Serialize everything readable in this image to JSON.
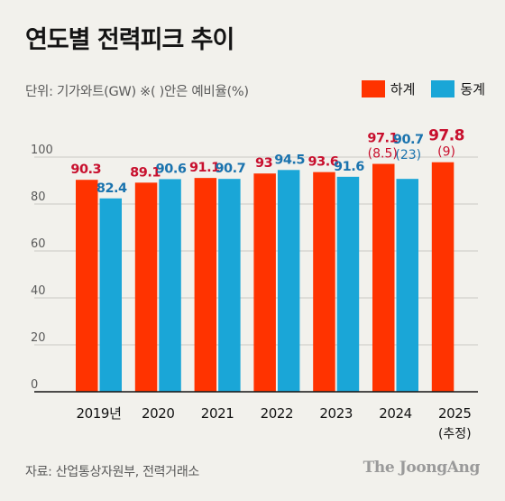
{
  "header": {
    "title": "연도별 전력피크 추이",
    "unit_note": "단위: 기가와트(GW)   ※(   )안은 예비율(%)"
  },
  "footer": {
    "source": "자료: 산업통상자원부, 전력거래소",
    "brand": "The JoongAng"
  },
  "colors": {
    "summer": "#ff3300",
    "winter": "#1aa6d7",
    "summer_label": "#c8102e",
    "winter_label": "#1a73ae",
    "grid": "#c9c9c4",
    "tick": "#5a5a5a"
  },
  "chart_data": {
    "type": "bar",
    "categories": [
      "2019년",
      "2020",
      "2021",
      "2022",
      "2023",
      "2024",
      "2025"
    ],
    "category_notes": [
      "",
      "",
      "",
      "",
      "",
      "",
      "(추정)"
    ],
    "series": [
      {
        "name": "하계",
        "values": [
          90.3,
          89.1,
          91.1,
          93,
          93.6,
          97.1,
          97.8
        ],
        "labels": [
          "90.3",
          "89.1",
          "91.1",
          "93",
          "93.6",
          "97.1",
          "97.8"
        ],
        "reserve_labels": [
          "",
          "",
          "",
          "",
          "",
          "(8.5)",
          "(9)"
        ]
      },
      {
        "name": "동계",
        "values": [
          82.4,
          90.6,
          90.7,
          94.5,
          91.6,
          90.7,
          null
        ],
        "labels": [
          "82.4",
          "90.6",
          "90.7",
          "94.5",
          "91.6",
          "90.7",
          ""
        ],
        "reserve_labels": [
          "",
          "",
          "",
          "",
          "",
          "(23)",
          ""
        ]
      }
    ],
    "yticks": [
      "0",
      "20",
      "40",
      "60",
      "80",
      "100"
    ],
    "ylim": [
      0,
      100
    ],
    "grid": true,
    "legend": "top-right"
  }
}
